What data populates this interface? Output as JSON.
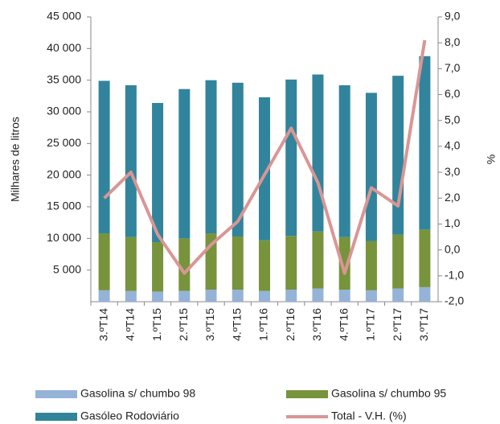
{
  "chart_data": {
    "type": "bar",
    "stacked": true,
    "y_label": "Milhares de litros",
    "y2_label": "%",
    "categories": [
      "3.ºT14",
      "4.ºT14",
      "1.ºT15",
      "2.ºT15",
      "3.ºT15",
      "4.ºT15",
      "1.ºT16",
      "2.ºT16",
      "3.ºT16",
      "4.ºT16",
      "1.ºT17",
      "2.ºT17",
      "3.ºT17"
    ],
    "series": [
      {
        "name": "Gasolina s/ chumbo 98",
        "color": "#95b3d7",
        "values": [
          1800,
          1700,
          1600,
          1700,
          1900,
          1900,
          1700,
          1900,
          2100,
          1900,
          1800,
          2100,
          2300
        ]
      },
      {
        "name": "Gasolina s/ chumbo 95",
        "color": "#77933c",
        "values": [
          9000,
          8500,
          7800,
          8300,
          8900,
          8400,
          8000,
          8500,
          9000,
          8300,
          7800,
          8500,
          9100
        ]
      },
      {
        "name": "Gasóleo  Rodoviário",
        "color": "#31849b",
        "values": [
          24100,
          24000,
          22000,
          23600,
          24200,
          24300,
          22600,
          24700,
          24800,
          24000,
          23400,
          25100,
          27400
        ]
      },
      {
        "name": "Total - V.H. (%)",
        "color": "#d99694",
        "type": "line",
        "axis": "y2",
        "values": [
          2.0,
          3.0,
          0.6,
          -0.9,
          0.2,
          1.1,
          2.9,
          4.7,
          2.6,
          -0.9,
          2.4,
          1.7,
          8.1
        ]
      }
    ],
    "ylim": [
      0,
      45000
    ],
    "yticks": [
      {
        "value": 5000,
        "label": "5 000"
      },
      {
        "value": 10000,
        "label": "10 000"
      },
      {
        "value": 15000,
        "label": "15 000"
      },
      {
        "value": 20000,
        "label": "20 000"
      },
      {
        "value": 25000,
        "label": "25 000"
      },
      {
        "value": 30000,
        "label": "30 000"
      },
      {
        "value": 35000,
        "label": "35 000"
      },
      {
        "value": 40000,
        "label": "40 000"
      },
      {
        "value": 45000,
        "label": "45 000"
      }
    ],
    "y2lim": [
      -2,
      9
    ],
    "y2ticks": [
      {
        "value": -2,
        "label": "-2,0"
      },
      {
        "value": -1,
        "label": "-1,0"
      },
      {
        "value": 0,
        "label": "0,0"
      },
      {
        "value": 1,
        "label": "1,0"
      },
      {
        "value": 2,
        "label": "2,0"
      },
      {
        "value": 3,
        "label": "3,0"
      },
      {
        "value": 4,
        "label": "4,0"
      },
      {
        "value": 5,
        "label": "5,0"
      },
      {
        "value": 6,
        "label": "6,0"
      },
      {
        "value": 7,
        "label": "7,0"
      },
      {
        "value": 8,
        "label": "8,0"
      },
      {
        "value": 9,
        "label": "9,0"
      }
    ],
    "legend": "bottom"
  }
}
